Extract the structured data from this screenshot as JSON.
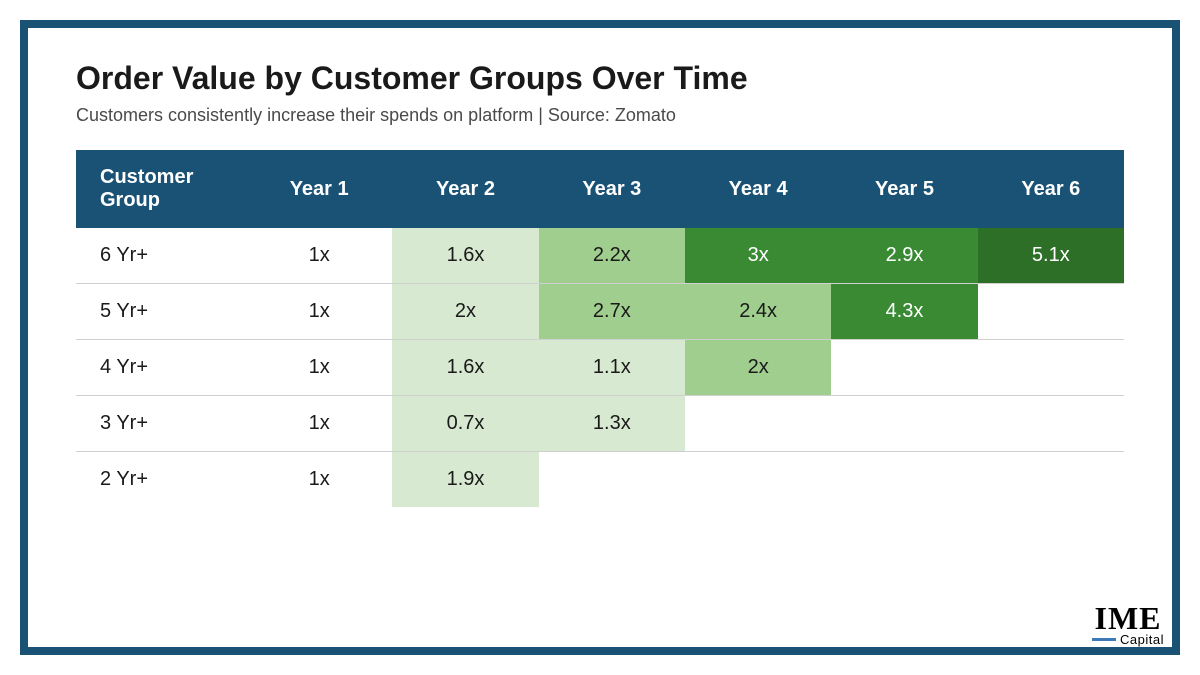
{
  "title": "Order Value by Customer Groups Over Time",
  "subtitle": "Customers consistently increase their spends on platform | Source: Zomato",
  "table": {
    "type": "table",
    "header_bg_color": "#1a5276",
    "header_text_color": "#ffffff",
    "header_fontsize": 20,
    "body_fontsize": 20,
    "body_text_color": "#1a1a1a",
    "border_color": "#d0d0d0",
    "columns": [
      "Customer Group",
      "Year 1",
      "Year 2",
      "Year 3",
      "Year 4",
      "Year 5",
      "Year 6"
    ],
    "rows": [
      {
        "label": "6 Yr+",
        "cells": [
          {
            "value": "1x",
            "bg": "#ffffff"
          },
          {
            "value": "1.6x",
            "bg": "#d7e9d1"
          },
          {
            "value": "2.2x",
            "bg": "#9fce8e"
          },
          {
            "value": "3x",
            "bg": "#3a8a33",
            "text": "#ffffff"
          },
          {
            "value": "2.9x",
            "bg": "#3a8a33",
            "text": "#ffffff"
          },
          {
            "value": "5.1x",
            "bg": "#2e6f28",
            "text": "#ffffff"
          }
        ]
      },
      {
        "label": "5 Yr+",
        "cells": [
          {
            "value": "1x",
            "bg": "#ffffff"
          },
          {
            "value": "2x",
            "bg": "#d7e9d1"
          },
          {
            "value": "2.7x",
            "bg": "#9fce8e"
          },
          {
            "value": "2.4x",
            "bg": "#9fce8e"
          },
          {
            "value": "4.3x",
            "bg": "#3a8a33",
            "text": "#ffffff"
          },
          {
            "value": "",
            "bg": "#ffffff"
          }
        ]
      },
      {
        "label": "4 Yr+",
        "cells": [
          {
            "value": "1x",
            "bg": "#ffffff"
          },
          {
            "value": "1.6x",
            "bg": "#d7e9d1"
          },
          {
            "value": "1.1x",
            "bg": "#d7e9d1"
          },
          {
            "value": "2x",
            "bg": "#9fce8e"
          },
          {
            "value": "",
            "bg": "#ffffff"
          },
          {
            "value": "",
            "bg": "#ffffff"
          }
        ]
      },
      {
        "label": "3 Yr+",
        "cells": [
          {
            "value": "1x",
            "bg": "#ffffff"
          },
          {
            "value": "0.7x",
            "bg": "#d7e9d1"
          },
          {
            "value": "1.3x",
            "bg": "#d7e9d1"
          },
          {
            "value": "",
            "bg": "#ffffff"
          },
          {
            "value": "",
            "bg": "#ffffff"
          },
          {
            "value": "",
            "bg": "#ffffff"
          }
        ]
      },
      {
        "label": "2 Yr+",
        "cells": [
          {
            "value": "1x",
            "bg": "#ffffff"
          },
          {
            "value": "1.9x",
            "bg": "#d7e9d1"
          },
          {
            "value": "",
            "bg": "#ffffff"
          },
          {
            "value": "",
            "bg": "#ffffff"
          },
          {
            "value": "",
            "bg": "#ffffff"
          },
          {
            "value": "",
            "bg": "#ffffff"
          }
        ]
      }
    ]
  },
  "logo": {
    "main": "IME",
    "sub": "Capital",
    "line_color": "#3a7ab8"
  },
  "frame": {
    "border_color": "#1a5276",
    "border_width": 8,
    "background_color": "#ffffff"
  },
  "color_scale": {
    "none": "#ffffff",
    "low": "#d7e9d1",
    "mid": "#9fce8e",
    "high": "#3a8a33",
    "highest": "#2e6f28"
  }
}
